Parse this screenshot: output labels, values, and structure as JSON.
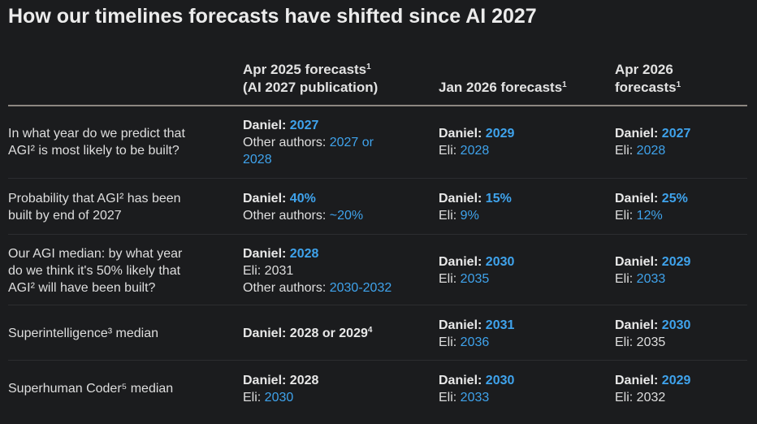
{
  "title": "How our timelines forecasts have shifted since AI 2027",
  "headers": {
    "col1_line1": "Apr 2025 forecasts",
    "col1_line1_sup": "1",
    "col1_line2": "(AI 2027 publication)",
    "col2": "Jan 2026 forecasts",
    "col2_sup": "1",
    "col3_line1": "Apr 2026",
    "col3_line2": "forecasts",
    "col3_line2_sup": "1"
  },
  "colors": {
    "background": "#1b1c1e",
    "accent": "#3fa3ec",
    "text": "#dedede",
    "rule": "#8d8781"
  },
  "rows": [
    {
      "question_lines": [
        "In what year do we predict that",
        "AGI² is most likely to be built?"
      ],
      "apr2025": {
        "daniel_label": "Daniel: ",
        "daniel_value": "2027",
        "other_label": "Other authors: ",
        "other_value_1": "2027 or",
        "other_value_2": "2028"
      },
      "jan2026": {
        "daniel_label": "Daniel: ",
        "daniel_value": "2029",
        "eli_label": "Eli: ",
        "eli_value": "2028"
      },
      "apr2026": {
        "daniel_label": "Daniel: ",
        "daniel_value": "2027",
        "eli_label": "Eli: ",
        "eli_value": "2028"
      }
    },
    {
      "question_lines": [
        "Probability that AGI² has been",
        "built by end of 2027"
      ],
      "apr2025": {
        "daniel_label": "Daniel: ",
        "daniel_value": "40%",
        "other_label": "Other authors: ",
        "other_value": "~20%"
      },
      "jan2026": {
        "daniel_label": "Daniel: ",
        "daniel_value": "15%",
        "eli_label": "Eli: ",
        "eli_value": "9%"
      },
      "apr2026": {
        "daniel_label": "Daniel: ",
        "daniel_value": "25%",
        "eli_label": "Eli: ",
        "eli_value": "12%"
      }
    },
    {
      "question_lines": [
        "Our AGI median: by what year",
        "do we think it's 50% likely that",
        "AGI² will have been built?"
      ],
      "apr2025": {
        "daniel_label": "Daniel: ",
        "daniel_value": "2028",
        "eli_label": "Eli: ",
        "eli_value": "2031",
        "other_label": "Other authors: ",
        "other_value": "2030-2032"
      },
      "jan2026": {
        "daniel_label": "Daniel: ",
        "daniel_value": "2030",
        "eli_label": "Eli: ",
        "eli_value": "2035"
      },
      "apr2026": {
        "daniel_label": "Daniel: ",
        "daniel_value": "2029",
        "eli_label": "Eli: ",
        "eli_value": "2033"
      }
    },
    {
      "question": "Superintelligence³ median",
      "apr2025": {
        "daniel_text": "Daniel: 2028 or 2029",
        "daniel_sup": "4"
      },
      "jan2026": {
        "daniel_label": "Daniel: ",
        "daniel_value": "2031",
        "eli_label": "Eli: ",
        "eli_value": "2036"
      },
      "apr2026": {
        "daniel_label": "Daniel: ",
        "daniel_value": "2030",
        "eli_label": "Eli: ",
        "eli_value": "2035"
      }
    },
    {
      "question": "Superhuman Coder⁵ median",
      "apr2025": {
        "daniel_text": "Daniel: 2028",
        "eli_label": "Eli: ",
        "eli_value": "2030"
      },
      "jan2026": {
        "daniel_label": "Daniel: ",
        "daniel_value": "2030",
        "eli_label": "Eli: ",
        "eli_value": "2033"
      },
      "apr2026": {
        "daniel_label": "Daniel: ",
        "daniel_value": "2029",
        "eli_label": "Eli: ",
        "eli_value": "2032"
      }
    }
  ]
}
